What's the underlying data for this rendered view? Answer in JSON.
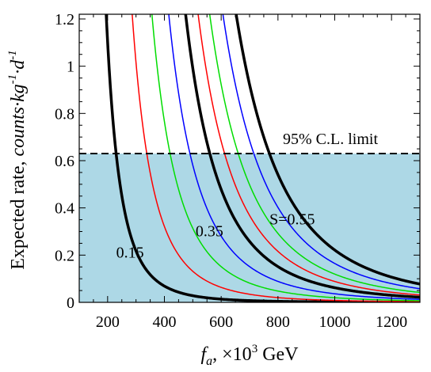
{
  "chart_data": {
    "type": "line",
    "xlabel": {
      "var": "f",
      "sub": "a",
      "rest": ", ×10",
      "sup": "3",
      "unit": " GeV"
    },
    "ylabel": {
      "plain": "Expected rate, ",
      "italic_main": "counts·kg",
      "sup1": "-1",
      "italic_mid": "·d",
      "sup2": "-1"
    },
    "xlim": [
      100,
      1300
    ],
    "ylim": [
      0,
      1.22
    ],
    "xticks": [
      200,
      400,
      600,
      800,
      1000,
      1200
    ],
    "xtick_labels": [
      "200",
      "400",
      "600",
      "800",
      "1000",
      "1200"
    ],
    "yticks": [
      0,
      0.2,
      0.4,
      0.6,
      0.8,
      1.0,
      1.2
    ],
    "ytick_labels": [
      "0",
      "0.2",
      "0.4",
      "0.6",
      "0.8",
      "1",
      "1.2"
    ],
    "limit": {
      "value": 0.63,
      "label": "95% C.L. limit",
      "fill_color": "#add8e6"
    },
    "series": [
      {
        "color": "#000000",
        "width": 3.5,
        "x_at_limit": 230
      },
      {
        "color": "#ff0000",
        "width": 1.5,
        "x_at_limit": 338
      },
      {
        "color": "#00dd00",
        "width": 1.5,
        "x_at_limit": 420
      },
      {
        "color": "#0000ff",
        "width": 1.5,
        "x_at_limit": 490
      },
      {
        "color": "#000000",
        "width": 3.5,
        "x_at_limit": 560
      },
      {
        "color": "#ff0000",
        "width": 1.5,
        "x_at_limit": 612
      },
      {
        "color": "#00dd00",
        "width": 1.5,
        "x_at_limit": 660
      },
      {
        "color": "#0000ff",
        "width": 1.5,
        "x_at_limit": 715
      },
      {
        "color": "#000000",
        "width": 3.5,
        "x_at_limit": 770
      }
    ],
    "annotations": [
      {
        "text": "0.15",
        "x": 230,
        "y": 0.19
      },
      {
        "text": "0.35",
        "x": 510,
        "y": 0.28
      },
      {
        "text": "S=0.55",
        "x": 770,
        "y": 0.33
      }
    ]
  }
}
